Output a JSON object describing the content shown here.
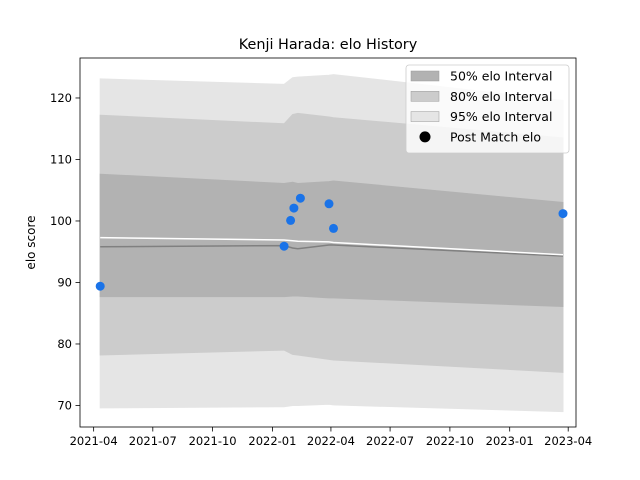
{
  "chart_data": {
    "type": "area",
    "title": "Kenji Harada: elo History",
    "xlabel": "",
    "ylabel": "elo score",
    "x_range": [
      "2021-03-11",
      "2023-04-13"
    ],
    "ylim": [
      66.5,
      126.5
    ],
    "x_ticks": [
      {
        "date": "2021-04-01",
        "label": "2021-04"
      },
      {
        "date": "2021-07-01",
        "label": "2021-07"
      },
      {
        "date": "2021-10-01",
        "label": "2021-10"
      },
      {
        "date": "2022-01-01",
        "label": "2022-01"
      },
      {
        "date": "2022-04-01",
        "label": "2022-04"
      },
      {
        "date": "2022-07-01",
        "label": "2022-07"
      },
      {
        "date": "2022-10-01",
        "label": "2022-10"
      },
      {
        "date": "2023-01-01",
        "label": "2023-01"
      },
      {
        "date": "2023-04-01",
        "label": "2023-04"
      }
    ],
    "y_ticks": [
      70,
      80,
      90,
      100,
      110,
      120
    ],
    "x": [
      "2021-04-11",
      "2022-01-19",
      "2022-02-01",
      "2022-02-09",
      "2022-03-29",
      "2022-04-05",
      "2023-03-24"
    ],
    "bands": [
      {
        "name": "95% elo Interval",
        "color": "#e5e5e5",
        "lower": [
          69.6,
          69.8,
          70.0,
          70.0,
          70.2,
          70.1,
          69.0
        ],
        "upper": [
          123.1,
          122.2,
          123.3,
          123.4,
          123.7,
          123.8,
          119.6
        ]
      },
      {
        "name": "80% elo Interval",
        "color": "#cccccc",
        "lower": [
          78.2,
          79.0,
          78.3,
          78.2,
          77.5,
          77.4,
          75.4
        ],
        "upper": [
          117.2,
          115.8,
          117.3,
          117.5,
          116.9,
          116.8,
          113.5
        ]
      },
      {
        "name": "50% elo Interval",
        "color": "#b2b2b2",
        "lower": [
          87.7,
          87.7,
          87.8,
          87.8,
          87.5,
          87.5,
          86.1
        ],
        "upper": [
          107.6,
          106.1,
          106.3,
          106.1,
          106.4,
          106.5,
          103.0
        ]
      }
    ],
    "median_line": {
      "color": "#808080",
      "values": [
        95.8,
        96.0,
        95.6,
        95.5,
        96.1,
        96.1,
        94.3
      ]
    },
    "mean_line": {
      "color": "#ffffff",
      "values": [
        97.3,
        96.9,
        96.8,
        96.7,
        96.6,
        96.5,
        94.5
      ]
    },
    "points": {
      "name": "Post Match elo",
      "color": "#1a73e8",
      "values": [
        {
          "x": "2021-04-11",
          "y": 89.4
        },
        {
          "x": "2022-01-19",
          "y": 95.9
        },
        {
          "x": "2022-01-29",
          "y": 100.1
        },
        {
          "x": "2022-02-03",
          "y": 102.1
        },
        {
          "x": "2022-02-13",
          "y": 103.7
        },
        {
          "x": "2022-03-29",
          "y": 102.8
        },
        {
          "x": "2022-04-05",
          "y": 98.8
        },
        {
          "x": "2023-03-24",
          "y": 101.2
        }
      ]
    },
    "legend": {
      "placement": "top-right",
      "entries": [
        {
          "label": "50% elo Interval",
          "color": "#b2b2b2",
          "kind": "patch"
        },
        {
          "label": "80% elo Interval",
          "color": "#cccccc",
          "kind": "patch"
        },
        {
          "label": "95% elo Interval",
          "color": "#e5e5e5",
          "kind": "patch"
        },
        {
          "label": "Post Match elo",
          "color": "#000000",
          "kind": "marker"
        }
      ]
    },
    "grid": false
  }
}
